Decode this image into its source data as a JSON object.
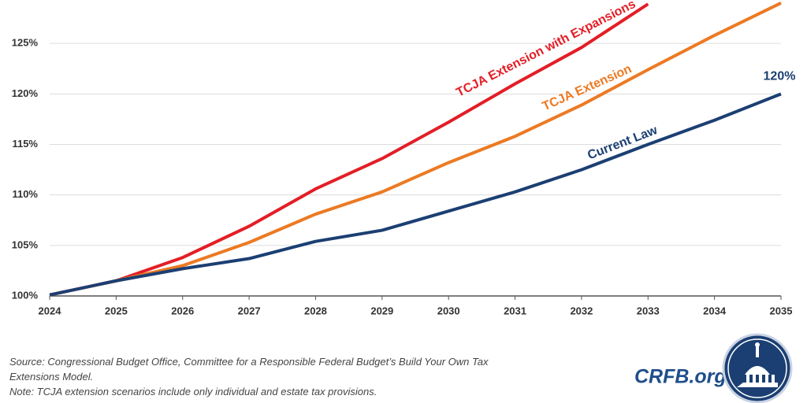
{
  "chart_data": {
    "type": "line",
    "x": [
      2024,
      2025,
      2026,
      2027,
      2028,
      2029,
      2030,
      2031,
      2032,
      2033,
      2034,
      2035
    ],
    "xlim": [
      2024,
      2035
    ],
    "ylim": [
      100,
      129.3
    ],
    "yticks": [
      {
        "value": 100,
        "label": "100%"
      },
      {
        "value": 105,
        "label": "105%"
      },
      {
        "value": 110,
        "label": "110%"
      },
      {
        "value": 115,
        "label": "115%"
      },
      {
        "value": 120,
        "label": "120%"
      },
      {
        "value": 125,
        "label": "125%"
      }
    ],
    "grid": true,
    "series": [
      {
        "name": "TCJA Extension with Expansions",
        "color": "#e31e26",
        "values": [
          100.1,
          101.5,
          103.8,
          106.9,
          110.6,
          113.6,
          117.2,
          121.0,
          124.6,
          128.9,
          null,
          null
        ]
      },
      {
        "name": "TCJA Extension",
        "color": "#ec7a23",
        "values": [
          100.1,
          101.5,
          103.0,
          105.3,
          108.1,
          110.3,
          113.2,
          115.8,
          118.9,
          122.4,
          125.8,
          129.0
        ]
      },
      {
        "name": "Current Law",
        "color": "#1b3f73",
        "values": [
          100.1,
          101.5,
          102.7,
          103.7,
          105.4,
          106.5,
          108.4,
          110.3,
          112.5,
          115.0,
          117.4,
          120.0
        ],
        "value_labels": [
          null,
          null,
          null,
          null,
          null,
          null,
          null,
          null,
          null,
          null,
          null,
          "120%"
        ]
      }
    ],
    "source": "Source: Congressional  Budget Office, Committee for a Responsible Federal Budget’s Build Your Own Tax",
    "source_cont": "Extensions Model.",
    "note": "Note: TCJA extension scenarios include only individual and estate tax provisions.",
    "brand": "CRFB.org"
  }
}
